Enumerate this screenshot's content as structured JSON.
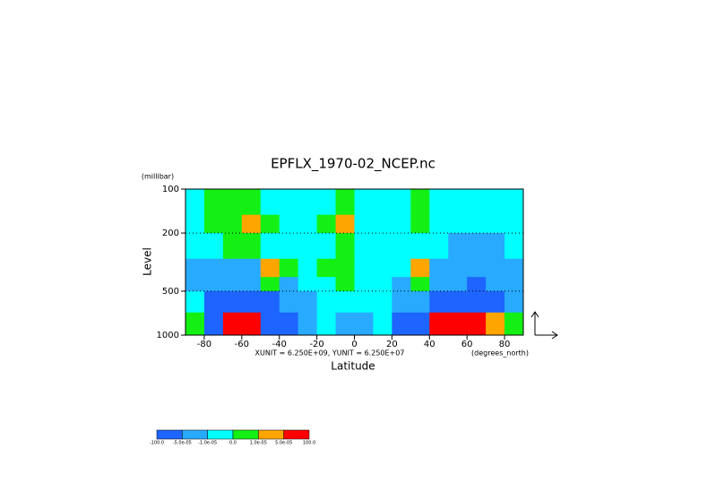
{
  "chart_data": {
    "type": "contour",
    "title": "EPFLX_1970-02_NCEP.nc",
    "y_label": "Level",
    "y_unit": "(millibar)",
    "x_label": "Latitude",
    "x_unit": "(degrees_north)",
    "note": "XUNIT = 6.250E+09, YUNIT = 6.250E+07",
    "xlim": [
      -90,
      90
    ],
    "xticks": [
      -80,
      -60,
      -40,
      -20,
      0,
      20,
      40,
      60,
      80
    ],
    "ylim": [
      100,
      1000
    ],
    "yticks": [
      100,
      200,
      500,
      1000
    ],
    "log_y": true,
    "y_inverted": true,
    "x_edges": [
      -90,
      -80,
      -70,
      -60,
      -50,
      -40,
      -30,
      -20,
      -10,
      0,
      10,
      20,
      30,
      40,
      50,
      60,
      70,
      80,
      90
    ],
    "y_edges": [
      100,
      150,
      200,
      300,
      400,
      500,
      700,
      1000
    ],
    "values": [
      [
        -5e-06,
        5e-06,
        5e-06,
        5e-06,
        -5e-06,
        -5e-06,
        -5e-06,
        -5e-06,
        5e-06,
        -5e-06,
        -5e-06,
        -5e-06,
        5e-06,
        -5e-06,
        -5e-06,
        -5e-06,
        -5e-06,
        -5e-06
      ],
      [
        -5e-06,
        5e-06,
        5e-06,
        3e-05,
        5e-06,
        -5e-06,
        -5e-06,
        5e-06,
        3e-05,
        -5e-06,
        -5e-06,
        -5e-06,
        5e-06,
        -5e-06,
        -5e-06,
        -5e-06,
        -5e-06,
        -5e-06
      ],
      [
        -5e-06,
        -5e-06,
        5e-06,
        5e-06,
        -5e-06,
        -5e-06,
        -5e-06,
        -5e-06,
        5e-06,
        -5e-06,
        -5e-06,
        -5e-06,
        -5e-06,
        -5e-06,
        -3e-05,
        -3e-05,
        -3e-05,
        -5e-06
      ],
      [
        -3e-05,
        -3e-05,
        -3e-05,
        -3e-05,
        3e-05,
        5e-06,
        -5e-06,
        5e-06,
        5e-06,
        -5e-06,
        -5e-06,
        -5e-06,
        3e-05,
        -3e-05,
        -3e-05,
        -3e-05,
        -3e-05,
        -3e-05
      ],
      [
        -3e-05,
        -3e-05,
        -3e-05,
        -3e-05,
        5e-06,
        -3e-05,
        -5e-06,
        -5e-06,
        5e-06,
        -5e-06,
        -5e-06,
        -3e-05,
        5e-06,
        -3e-05,
        -3e-05,
        -8e-05,
        -3e-05,
        -3e-05
      ],
      [
        -5e-06,
        -8e-05,
        -8e-05,
        -8e-05,
        -8e-05,
        -3e-05,
        -3e-05,
        -5e-06,
        -5e-06,
        -5e-06,
        -5e-06,
        -3e-05,
        -3e-05,
        -8e-05,
        -8e-05,
        -8e-05,
        -8e-05,
        -3e-05
      ],
      [
        5e-06,
        -8e-05,
        8e-05,
        8e-05,
        -8e-05,
        -8e-05,
        -3e-05,
        -5e-06,
        -3e-05,
        -3e-05,
        -5e-06,
        -8e-05,
        -8e-05,
        8e-05,
        8e-05,
        8e-05,
        3e-05,
        5e-06
      ]
    ],
    "levels": [
      {
        "value": -100,
        "label": "-100.0"
      },
      {
        "value": -5e-05,
        "label": "-5.0e-05"
      },
      {
        "value": -1e-05,
        "label": "-1.0e-05"
      },
      {
        "value": 0,
        "label": "0.0"
      },
      {
        "value": 1e-05,
        "label": "1.0e-05"
      },
      {
        "value": 5e-05,
        "label": "5.0e-05"
      },
      {
        "value": 100,
        "label": "100.0"
      }
    ],
    "colors": [
      "#1e64ff",
      "#28aaff",
      "#00ffff",
      "#14f014",
      "#ffa500",
      "#ff0000"
    ],
    "grid": true
  }
}
